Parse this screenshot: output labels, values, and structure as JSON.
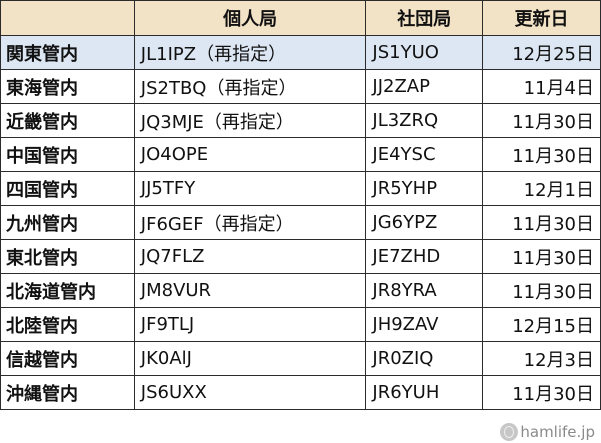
{
  "table": {
    "headers": [
      "",
      "個人局",
      "社団局",
      "更新日"
    ],
    "rows": [
      {
        "region": "関東管内",
        "personal": "JL1IPZ（再指定）",
        "club": "JS1YUO",
        "date": "12月25日"
      },
      {
        "region": "東海管内",
        "personal": "JS2TBQ（再指定）",
        "club": "JJ2ZAP",
        "date": "11月4日"
      },
      {
        "region": "近畿管内",
        "personal": "JQ3MJE（再指定）",
        "club": "JL3ZRQ",
        "date": "11月30日"
      },
      {
        "region": "中国管内",
        "personal": "JO4OPE",
        "club": "JE4YSC",
        "date": "11月30日"
      },
      {
        "region": "四国管内",
        "personal": "JJ5TFY",
        "club": "JR5YHP",
        "date": "12月1日"
      },
      {
        "region": "九州管内",
        "personal": "JF6GEF（再指定）",
        "club": "JG6YPZ",
        "date": "11月30日"
      },
      {
        "region": "東北管内",
        "personal": "JQ7FLZ",
        "club": "JE7ZHD",
        "date": "11月30日"
      },
      {
        "region": "北海道管内",
        "personal": "JM8VUR",
        "club": "JR8YRA",
        "date": "11月30日"
      },
      {
        "region": "北陸管内",
        "personal": "JF9TLJ",
        "club": "JH9ZAV",
        "date": "12月15日"
      },
      {
        "region": "信越管内",
        "personal": "JK0AlJ",
        "club": "JR0ZIQ",
        "date": "12月3日"
      },
      {
        "region": "沖縄管内",
        "personal": "JS6UXX",
        "club": "JR6YUH",
        "date": "11月30日"
      }
    ]
  },
  "watermark": "hamlife.jp",
  "colors": {
    "header_bg": "#f2e2c6",
    "highlight_row_bg": "#dde7f4",
    "border": "#2b2b2b"
  }
}
